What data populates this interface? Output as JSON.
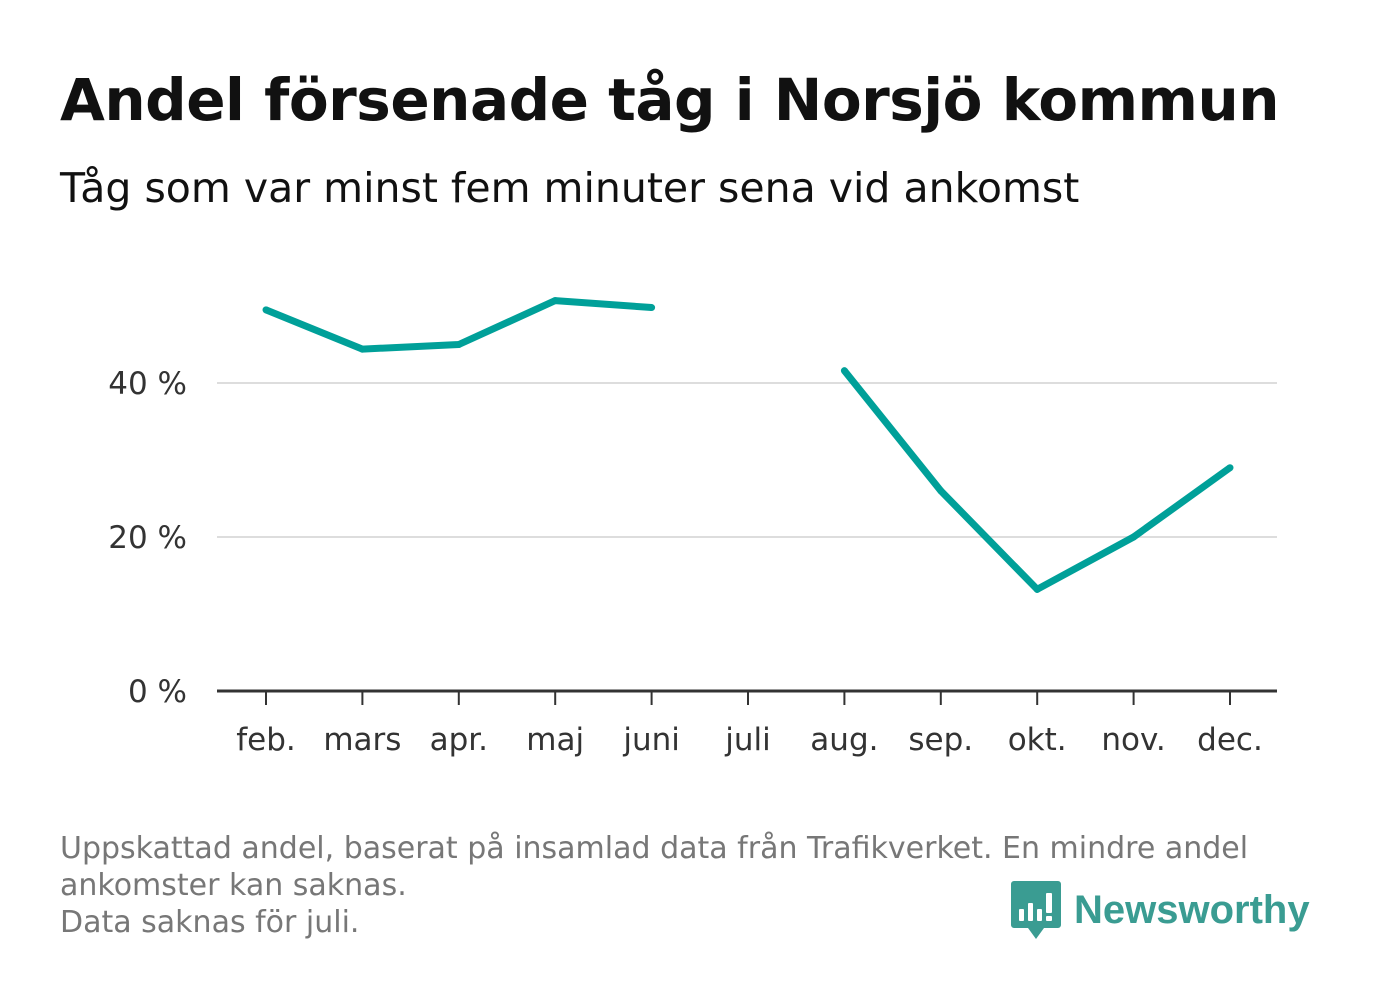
{
  "title": "Andel försenade tåg i Norsjö kommun",
  "subtitle": "Tåg som var minst fem minuter sena vid ankomst",
  "footnote": {
    "line1": "Uppskattad andel, baserat på insamlad data från Trafikverket. En mindre andel",
    "line2": "ankomster kan saknas.",
    "line3": "Data saknas för juli."
  },
  "logo": {
    "text": "Newsworthy",
    "icon": "newsworthy-logo-icon"
  },
  "colors": {
    "line": "#00a099",
    "grid": "#dddddd",
    "axis": "#333333",
    "brand": "#3a9c92"
  },
  "chart_data": {
    "type": "line",
    "title": "Andel försenade tåg i Norsjö kommun",
    "xlabel": "",
    "ylabel": "",
    "categories": [
      "feb.",
      "mars",
      "apr.",
      "maj",
      "juni",
      "juli",
      "aug.",
      "sep.",
      "okt.",
      "nov.",
      "dec."
    ],
    "series": [
      {
        "name": "Andel försenade tåg",
        "values": [
          49.5,
          44.4,
          45.0,
          50.7,
          49.8,
          null,
          41.6,
          26.0,
          13.2,
          20.0,
          29.0
        ]
      }
    ],
    "ylim": [
      0,
      52
    ],
    "yticks": [
      0,
      20,
      40
    ],
    "ytick_labels": [
      "0 %",
      "20 %",
      "40 %"
    ],
    "grid": true,
    "legend": "none"
  }
}
